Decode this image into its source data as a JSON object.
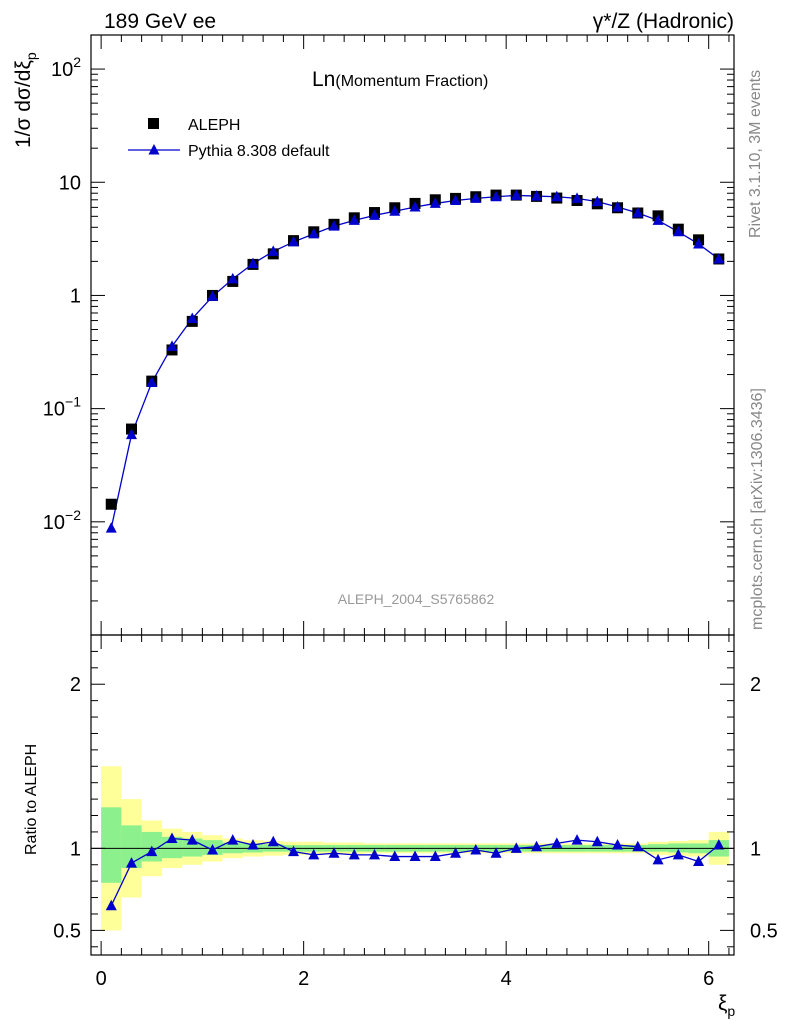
{
  "header": {
    "left": "189 GeV ee",
    "right": "γ*/Z (Hadronic)"
  },
  "side_labels": {
    "rivet": "Rivet 3.1.10,  3M events",
    "mcplots": "mcplots.cern.ch [arXiv:1306.3436]"
  },
  "watermark": "ALEPH_2004_S5765862",
  "plot_title_main": "Ln",
  "plot_title_sub": "(Momentum Fraction)",
  "colors": {
    "data": "#000000",
    "mc": "#0000cc",
    "band_inner": "#8cf08c",
    "band_outer": "#ffff99"
  },
  "chart_data": [
    {
      "type": "scatter",
      "title": "Ln(Momentum Fraction)",
      "ylabel": "1/σ dσ/dξp",
      "xlabel": "ξp",
      "yscale": "log",
      "xlim": [
        -0.1,
        6.25
      ],
      "ylim": [
        0.001,
        200
      ],
      "y_ticks": [
        "10^-2",
        "10^-1",
        "1",
        "10",
        "10^2"
      ],
      "legend": "top-left",
      "x": [
        0.1,
        0.3,
        0.5,
        0.7,
        0.9,
        1.1,
        1.3,
        1.5,
        1.7,
        1.9,
        2.1,
        2.3,
        2.5,
        2.7,
        2.9,
        3.1,
        3.3,
        3.5,
        3.7,
        3.9,
        4.1,
        4.3,
        4.5,
        4.7,
        4.9,
        5.1,
        5.3,
        5.5,
        5.7,
        5.9,
        6.1
      ],
      "series": [
        {
          "name": "ALEPH",
          "marker": "square",
          "values": [
            0.0143,
            0.066,
            0.175,
            0.33,
            0.59,
            1.0,
            1.33,
            1.88,
            2.33,
            3.05,
            3.65,
            4.25,
            4.85,
            5.4,
            5.95,
            6.5,
            7.0,
            7.2,
            7.45,
            7.7,
            7.7,
            7.5,
            7.25,
            6.9,
            6.45,
            5.95,
            5.35,
            5.05,
            3.85,
            3.1,
            2.1
          ]
        },
        {
          "name": "Pythia 8.308 default",
          "marker": "triangle",
          "line": true,
          "values": [
            0.0088,
            0.059,
            0.17,
            0.355,
            0.625,
            0.98,
            1.4,
            1.91,
            2.45,
            2.97,
            3.5,
            4.1,
            4.6,
            5.1,
            5.55,
            6.05,
            6.5,
            6.9,
            7.2,
            7.45,
            7.65,
            7.55,
            7.45,
            7.2,
            6.75,
            6.05,
            5.35,
            4.6,
            3.65,
            2.85,
            2.1
          ]
        }
      ]
    },
    {
      "type": "line",
      "ylabel": "Ratio to ALEPH",
      "xlabel": "ξp",
      "xlim": [
        -0.1,
        6.25
      ],
      "ylim": [
        0.35,
        2.3
      ],
      "x_ticks": [
        0,
        2,
        4,
        6
      ],
      "y_ticks": [
        0.5,
        1,
        2
      ],
      "x": [
        0.1,
        0.3,
        0.5,
        0.7,
        0.9,
        1.1,
        1.3,
        1.5,
        1.7,
        1.9,
        2.1,
        2.3,
        2.5,
        2.7,
        2.9,
        3.1,
        3.3,
        3.5,
        3.7,
        3.9,
        4.1,
        4.3,
        4.5,
        4.7,
        4.9,
        5.1,
        5.3,
        5.5,
        5.7,
        5.9,
        6.1
      ],
      "series": [
        {
          "name": "Pythia 8.308 default",
          "values": [
            0.65,
            0.91,
            0.98,
            1.06,
            1.05,
            0.99,
            1.05,
            1.02,
            1.04,
            0.98,
            0.96,
            0.97,
            0.96,
            0.96,
            0.95,
            0.95,
            0.95,
            0.97,
            0.99,
            0.97,
            1.0,
            1.01,
            1.03,
            1.05,
            1.04,
            1.02,
            1.01,
            0.93,
            0.96,
            0.92,
            1.02
          ]
        }
      ],
      "band_inner": {
        "lower": [
          0.79,
          0.88,
          0.92,
          0.94,
          0.95,
          0.96,
          0.97,
          0.975,
          0.98,
          0.98,
          0.98,
          0.98,
          0.98,
          0.98,
          0.98,
          0.98,
          0.98,
          0.98,
          0.98,
          0.98,
          0.98,
          0.98,
          0.98,
          0.98,
          0.98,
          0.98,
          0.98,
          0.98,
          0.975,
          0.97,
          0.95
        ],
        "upper": [
          1.25,
          1.14,
          1.1,
          1.07,
          1.06,
          1.05,
          1.035,
          1.03,
          1.025,
          1.02,
          1.02,
          1.02,
          1.02,
          1.02,
          1.02,
          1.02,
          1.02,
          1.02,
          1.02,
          1.02,
          1.02,
          1.02,
          1.02,
          1.02,
          1.02,
          1.02,
          1.02,
          1.025,
          1.03,
          1.03,
          1.05
        ]
      },
      "band_outer": {
        "lower": [
          0.5,
          0.7,
          0.83,
          0.88,
          0.9,
          0.92,
          0.94,
          0.95,
          0.955,
          0.96,
          0.96,
          0.965,
          0.965,
          0.97,
          0.97,
          0.97,
          0.97,
          0.97,
          0.97,
          0.97,
          0.97,
          0.97,
          0.97,
          0.97,
          0.97,
          0.97,
          0.97,
          0.96,
          0.955,
          0.95,
          0.9
        ]
      }
    }
  ]
}
